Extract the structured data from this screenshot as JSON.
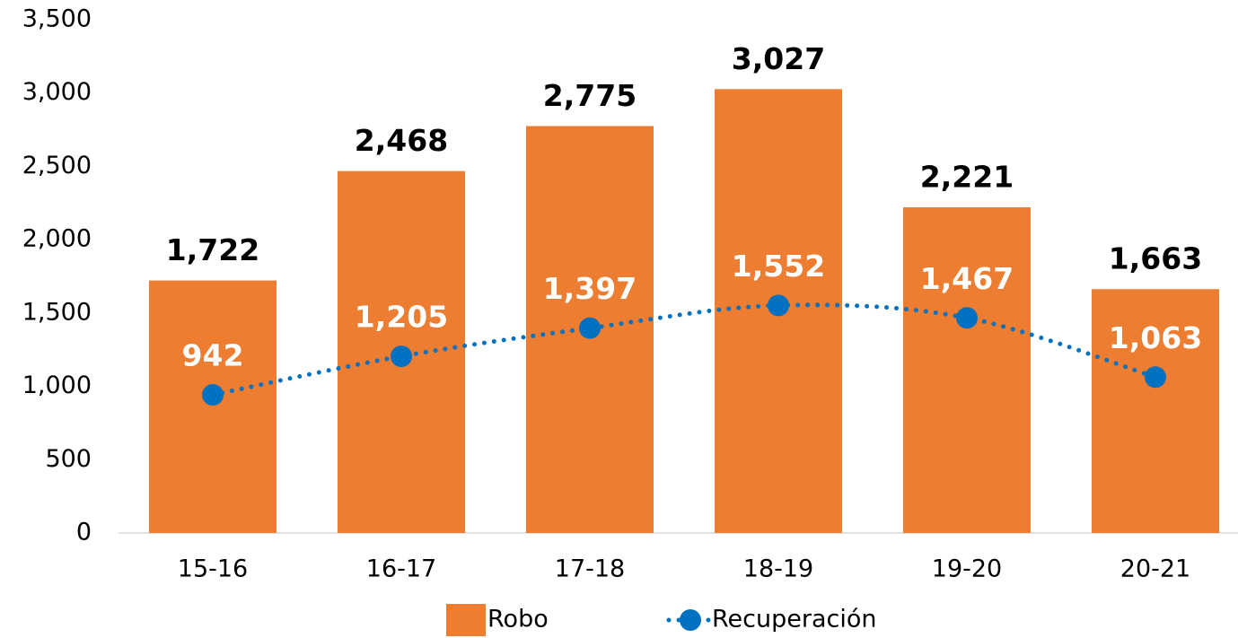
{
  "chart_data": {
    "type": "bar",
    "categories": [
      "15-16",
      "16-17",
      "17-18",
      "18-19",
      "19-20",
      "20-21"
    ],
    "series": [
      {
        "name": "Robo",
        "type": "bar",
        "color": "#ed7d31",
        "values": [
          1722,
          2468,
          2775,
          3027,
          2221,
          1663
        ],
        "value_labels": [
          "1,722",
          "2,468",
          "2,775",
          "3,027",
          "2,221",
          "1,663"
        ]
      },
      {
        "name": "Recuperación",
        "type": "line",
        "color": "#0070c0",
        "values": [
          942,
          1205,
          1397,
          1552,
          1467,
          1063
        ],
        "value_labels": [
          "942",
          "1,205",
          "1,397",
          "1,552",
          "1,467",
          "1,063"
        ]
      }
    ],
    "ylim": [
      0,
      3500
    ],
    "yticks": [
      0,
      500,
      {
        "value": 1000,
        "label": "1,000"
      },
      {
        "value": 1500,
        "label": "1,500"
      },
      {
        "value": 2000,
        "label": "2,000"
      },
      {
        "value": 2500,
        "label": "2,500"
      },
      {
        "value": 3000,
        "label": "3,000"
      },
      {
        "value": 3500,
        "label": "3,500"
      }
    ],
    "grid": false,
    "legend": "bottom"
  }
}
